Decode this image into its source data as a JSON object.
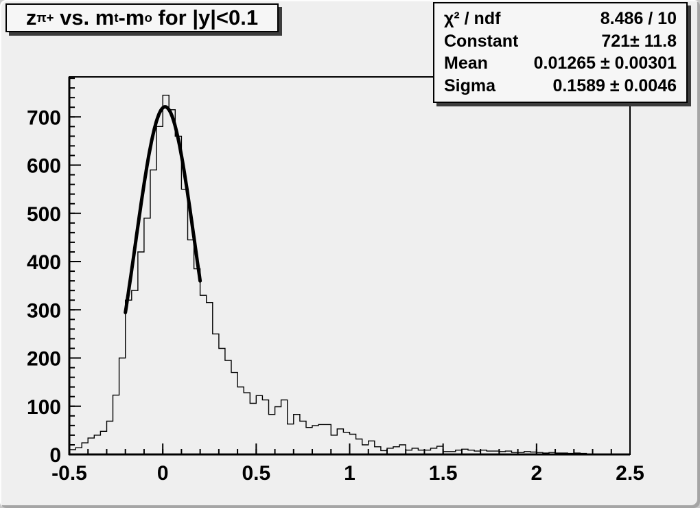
{
  "title": {
    "full_text": "z_{pi+} vs. m_t-m_o for |y|<0.1",
    "parts": [
      {
        "text": "z"
      },
      {
        "sub": "π+"
      },
      {
        "text": " vs. m"
      },
      {
        "sub": "t"
      },
      {
        "text": "-m"
      },
      {
        "sub": "o"
      },
      {
        "text": " for |y|<0.1"
      }
    ]
  },
  "stats": {
    "rows": [
      {
        "label": "χ² / ndf",
        "value": "8.486 / 10"
      },
      {
        "label": "Constant",
        "value": "721± 11.8"
      },
      {
        "label": "Mean",
        "value": "0.01265 ± 0.00301"
      },
      {
        "label": "Sigma",
        "value": "0.1589 ± 0.0046"
      }
    ]
  },
  "chart_data": {
    "type": "bar",
    "subtype": "step-histogram",
    "title": "z_{pi+} vs. m_t-m_o for |y|<0.1",
    "xlabel": "",
    "ylabel": "",
    "xlim": [
      -0.5,
      2.5
    ],
    "ylim": [
      0,
      783
    ],
    "grid": false,
    "legend": "none",
    "line_color": "#000000",
    "background_color": "#efefef",
    "x_start": -0.5,
    "bin_width": 0.0333333,
    "values": [
      10,
      14,
      24,
      34,
      40,
      48,
      69,
      123,
      200,
      320,
      340,
      420,
      490,
      590,
      680,
      745,
      715,
      660,
      550,
      445,
      385,
      330,
      315,
      250,
      220,
      195,
      170,
      140,
      128,
      106,
      122,
      113,
      83,
      99,
      113,
      63,
      83,
      69,
      56,
      60,
      62,
      62,
      40,
      53,
      46,
      42,
      32,
      20,
      28,
      16,
      8,
      13,
      16,
      20,
      9,
      13,
      9,
      9,
      13,
      17,
      6,
      6,
      9,
      11,
      9,
      7,
      9,
      7,
      7,
      6,
      7,
      4,
      4,
      6,
      5,
      4,
      3,
      4,
      3,
      3,
      2,
      3,
      2,
      0,
      0,
      0,
      0,
      0,
      0,
      0
    ],
    "xticks": [
      {
        "v": -0.5,
        "label": "-0.5"
      },
      {
        "v": 0,
        "label": "0"
      },
      {
        "v": 0.5,
        "label": "0.5"
      },
      {
        "v": 1,
        "label": "1"
      },
      {
        "v": 1.5,
        "label": "1.5"
      },
      {
        "v": 2,
        "label": "2"
      },
      {
        "v": 2.5,
        "label": "2.5"
      }
    ],
    "x_minor_step": 0.1,
    "yticks": [
      {
        "v": 0,
        "label": "0"
      },
      {
        "v": 100,
        "label": "100"
      },
      {
        "v": 200,
        "label": "200"
      },
      {
        "v": 300,
        "label": "300"
      },
      {
        "v": 400,
        "label": "400"
      },
      {
        "v": 500,
        "label": "500"
      },
      {
        "v": 600,
        "label": "600"
      },
      {
        "v": 700,
        "label": "700"
      }
    ],
    "y_minor_step": 20,
    "fit": {
      "type": "gaussian",
      "constant": 721,
      "mean": 0.01265,
      "sigma": 0.1589,
      "chi2": 8.486,
      "ndf": 10,
      "range": [
        -0.2,
        0.2
      ],
      "line_width": 5,
      "color": "#000000"
    }
  }
}
